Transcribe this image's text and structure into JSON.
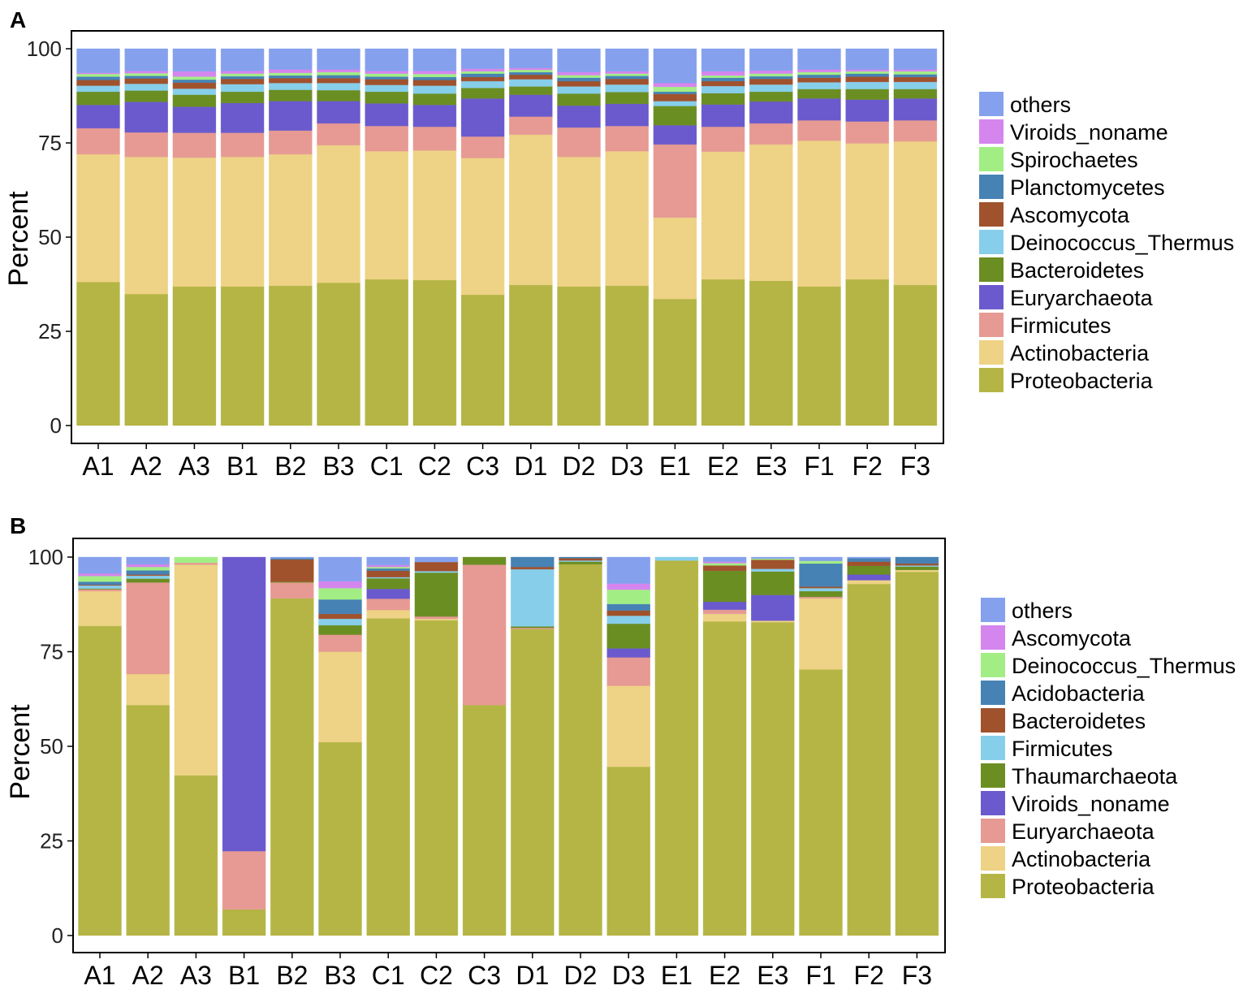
{
  "chart_data": [
    {
      "type": "bar",
      "stacked": true,
      "title": "A",
      "xlabel": "",
      "ylabel": "Percent",
      "ylim": [
        0,
        100
      ],
      "yticks": [
        "0",
        "25",
        "50",
        "75",
        "100"
      ],
      "grid": false,
      "legend_position": "right",
      "categories": [
        "A1",
        "A2",
        "A3",
        "B1",
        "B2",
        "B3",
        "C1",
        "C2",
        "C3",
        "D1",
        "D2",
        "D3",
        "E1",
        "E2",
        "E3",
        "F1",
        "F2",
        "F3"
      ],
      "series": [
        {
          "name": "Proteobacteria",
          "color": "#B5B545",
          "values": [
            38.1,
            34.9,
            36.9,
            36.9,
            37.1,
            37.9,
            38.8,
            38.6,
            34.7,
            37.3,
            36.9,
            37.1,
            33.6,
            38.8,
            38.4,
            36.9,
            38.8,
            37.3
          ]
        },
        {
          "name": "Actinobacteria",
          "color": "#EED285",
          "values": [
            33.9,
            36.4,
            34.2,
            34.4,
            34.9,
            36.5,
            34.0,
            34.4,
            36.3,
            39.9,
            34.4,
            35.7,
            21.6,
            33.9,
            36.2,
            38.7,
            36.1,
            38.1
          ]
        },
        {
          "name": "Firmicutes",
          "color": "#E69A93",
          "values": [
            6.9,
            6.5,
            6.6,
            6.4,
            6.3,
            5.8,
            6.7,
            6.3,
            5.7,
            4.8,
            7.8,
            6.7,
            19.4,
            6.6,
            5.6,
            5.4,
            5.8,
            5.6
          ]
        },
        {
          "name": "Euryarchaeota",
          "color": "#6A5ACD",
          "values": [
            6.2,
            8.1,
            6.9,
            7.9,
            7.8,
            5.9,
            6.0,
            5.8,
            10.1,
            5.8,
            5.8,
            5.9,
            5.1,
            5.9,
            5.8,
            5.8,
            5.8,
            5.8
          ]
        },
        {
          "name": "Bacteroidetes",
          "color": "#6B8E23",
          "values": [
            3.5,
            3.0,
            3.2,
            3.0,
            3.0,
            2.9,
            3.1,
            3.0,
            2.8,
            2.2,
            3.2,
            3.1,
            5.1,
            3.0,
            2.6,
            2.5,
            2.8,
            2.5
          ]
        },
        {
          "name": "Deinococcus_Thermus",
          "color": "#87CEEB",
          "values": [
            1.6,
            1.8,
            1.6,
            2.0,
            1.8,
            1.9,
            1.8,
            2.1,
            1.8,
            1.9,
            1.9,
            2.0,
            1.3,
            1.9,
            1.9,
            1.8,
            1.9,
            1.9
          ]
        },
        {
          "name": "Ascomycota",
          "color": "#A0522D",
          "values": [
            1.5,
            1.4,
            1.6,
            1.4,
            1.3,
            1.3,
            1.5,
            1.5,
            1.1,
            1.2,
            1.4,
            1.5,
            1.9,
            1.3,
            1.5,
            1.2,
            1.4,
            1.3
          ]
        },
        {
          "name": "Planctomycetes",
          "color": "#4682B4",
          "values": [
            0.9,
            0.7,
            0.8,
            0.7,
            0.7,
            0.8,
            0.7,
            0.8,
            0.9,
            0.7,
            0.9,
            0.8,
            0.6,
            0.9,
            0.7,
            0.8,
            0.8,
            0.7
          ]
        },
        {
          "name": "Spirochaetes",
          "color": "#A2EE85",
          "values": [
            0.7,
            0.7,
            0.8,
            0.7,
            0.7,
            0.8,
            0.8,
            0.8,
            0.6,
            0.6,
            0.7,
            0.6,
            1.3,
            0.6,
            0.7,
            0.7,
            0.6,
            0.8
          ]
        },
        {
          "name": "Viroids_noname",
          "color": "#D585EE",
          "values": [
            0.3,
            0.6,
            1.4,
            0.7,
            0.9,
            0.7,
            0.7,
            0.8,
            0.7,
            0.5,
            0.8,
            0.6,
            1.0,
            1.1,
            0.8,
            0.7,
            0.5,
            0.5
          ]
        },
        {
          "name": "others",
          "color": "#85A1EE",
          "values": [
            6.4,
            5.9,
            6.0,
            5.9,
            5.5,
            5.5,
            5.9,
            5.9,
            5.3,
            5.1,
            6.2,
            6.0,
            9.1,
            6.0,
            5.8,
            5.5,
            5.5,
            5.5
          ]
        }
      ]
    },
    {
      "type": "bar",
      "stacked": true,
      "title": "B",
      "xlabel": "",
      "ylabel": "Percent",
      "ylim": [
        0,
        100
      ],
      "yticks": [
        "0",
        "25",
        "50",
        "75",
        "100"
      ],
      "grid": false,
      "legend_position": "right",
      "categories": [
        "A1",
        "A2",
        "A3",
        "B1",
        "B2",
        "B3",
        "C1",
        "C2",
        "C3",
        "D1",
        "D2",
        "D3",
        "E1",
        "E2",
        "E3",
        "F1",
        "F2",
        "F3"
      ],
      "series": [
        {
          "name": "Proteobacteria",
          "color": "#B5B545",
          "values": [
            81.8,
            60.9,
            42.3,
            6.9,
            89.1,
            51.1,
            83.8,
            83.3,
            60.9,
            81.0,
            98.1,
            44.6,
            99.1,
            83.0,
            82.8,
            70.3,
            92.9,
            96.1
          ]
        },
        {
          "name": "Actinobacteria",
          "color": "#EED285",
          "values": [
            9.2,
            8.2,
            55.7,
            0,
            0,
            23.9,
            2.2,
            0.4,
            0,
            0,
            0,
            21.4,
            0,
            2.0,
            0.4,
            18.8,
            1.0,
            0.5
          ]
        },
        {
          "name": "Euryarchaeota",
          "color": "#E69A93",
          "values": [
            0.5,
            24.2,
            0.5,
            15.4,
            4.2,
            4.5,
            3.0,
            0.6,
            37.1,
            0.3,
            0,
            7.5,
            0,
            1.1,
            0,
            0.4,
            0,
            0
          ]
        },
        {
          "name": "Viroids_noname",
          "color": "#6A5ACD",
          "values": [
            0,
            0,
            0,
            77.7,
            0,
            0,
            2.6,
            0,
            0,
            0,
            0,
            2.4,
            0,
            2.1,
            6.8,
            0,
            1.5,
            0
          ]
        },
        {
          "name": "Thaumarchaeota",
          "color": "#6B8E23",
          "values": [
            0.2,
            1.0,
            0,
            0,
            0.2,
            2.5,
            2.8,
            11.6,
            2.0,
            0.4,
            0.7,
            6.5,
            0,
            8.2,
            6.2,
            1.5,
            2.3,
            0.9
          ]
        },
        {
          "name": "Firmicutes",
          "color": "#87CEEB",
          "values": [
            0.8,
            0.8,
            0,
            0,
            0,
            1.7,
            0.3,
            0.4,
            0,
            15.1,
            0.3,
            2.1,
            0.9,
            0,
            0.7,
            0.8,
            0,
            0.3
          ]
        },
        {
          "name": "Bacteroidetes",
          "color": "#A0522D",
          "values": [
            0.2,
            0.3,
            0,
            0,
            5.9,
            1.3,
            1.7,
            2.4,
            0,
            0.6,
            0.6,
            1.4,
            0,
            1.4,
            2.4,
            0.4,
            1.1,
            0.5
          ]
        },
        {
          "name": "Acidobacteria",
          "color": "#4682B4",
          "values": [
            0.8,
            1.1,
            0,
            0,
            0.3,
            3.8,
            0.6,
            0,
            0,
            2.6,
            0.3,
            1.7,
            0,
            0,
            0,
            6.1,
            0.9,
            1.7
          ]
        },
        {
          "name": "Deinococcus_Thermus",
          "color": "#A2EE85",
          "values": [
            1.5,
            0.9,
            1.5,
            0,
            0,
            3.0,
            0.4,
            0,
            0,
            0,
            0,
            3.8,
            0,
            0.6,
            0.3,
            0.7,
            0,
            0
          ]
        },
        {
          "name": "Ascomycota",
          "color": "#D585EE",
          "values": [
            0.7,
            0.7,
            0,
            0,
            0,
            1.8,
            0.5,
            0,
            0,
            0,
            0,
            1.6,
            0,
            0.4,
            0,
            0,
            0,
            0
          ]
        },
        {
          "name": "others",
          "color": "#85A1EE",
          "values": [
            4.3,
            1.9,
            0,
            0,
            0.3,
            6.4,
            2.1,
            1.3,
            0,
            0,
            0,
            7.0,
            0,
            1.2,
            0.4,
            1.0,
            0.3,
            0
          ]
        }
      ]
    }
  ]
}
